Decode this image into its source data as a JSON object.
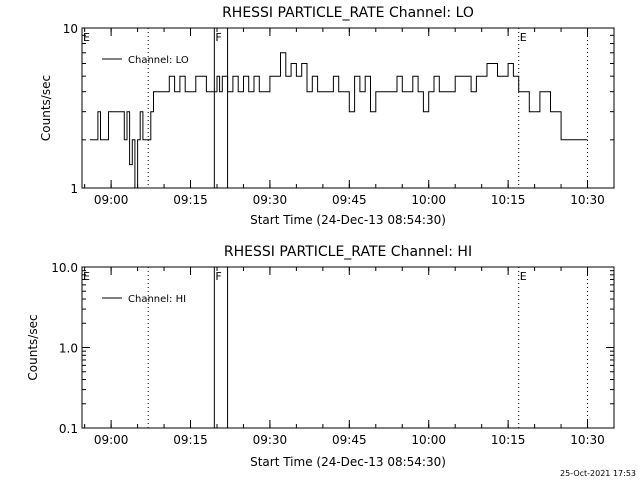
{
  "footer": {
    "timestamp": "25-Oct-2021 17:53"
  },
  "chart_data": [
    {
      "type": "line",
      "title": "RHESSI PARTICLE_RATE Channel: LO",
      "xlabel": "Start Time (24-Dec-13 08:54:30)",
      "ylabel": "Counts/sec",
      "xscale": "time",
      "yscale": "log",
      "xlim": [
        "08:54:30",
        "10:35:00"
      ],
      "ylim": [
        1,
        10
      ],
      "xtick_labels": [
        "09:00",
        "09:15",
        "09:30",
        "09:45",
        "10:00",
        "10:15",
        "10:30"
      ],
      "ytick_labels": [
        "1",
        "10"
      ],
      "legend": {
        "position": "top-left",
        "entries": [
          "Channel: LO"
        ]
      },
      "flags": [
        {
          "label": "E",
          "time": "08:54:30",
          "style": "dotted"
        },
        {
          "label": "",
          "time": "09:07:00",
          "style": "dotted"
        },
        {
          "label": "F",
          "time": "09:19:30",
          "style": "solid"
        },
        {
          "label": "",
          "time": "09:22:00",
          "style": "solid"
        },
        {
          "label": "E",
          "time": "10:17:00",
          "style": "dotted"
        },
        {
          "label": "",
          "time": "10:30:00",
          "style": "dotted"
        }
      ],
      "series": [
        {
          "name": "Channel: LO",
          "x": [
            "08:56:00",
            "08:57:00",
            "08:57:30",
            "08:58:00",
            "08:58:30",
            "08:59:30",
            "09:00:00",
            "09:01:00",
            "09:02:00",
            "09:02:30",
            "09:03:00",
            "09:03:30",
            "09:04:00",
            "09:04:30",
            "09:05:00",
            "09:05:30",
            "09:06:00",
            "09:07:00",
            "09:07:30",
            "09:08:00",
            "09:09:00",
            "09:10:00",
            "09:11:00",
            "09:12:00",
            "09:13:00",
            "09:14:00",
            "09:15:00",
            "09:16:00",
            "09:17:00",
            "09:18:00",
            "09:19:00",
            "09:19:30",
            "09:20:00",
            "09:20:30",
            "09:21:00",
            "09:22:00",
            "09:23:00",
            "09:24:00",
            "09:25:00",
            "09:26:00",
            "09:27:00",
            "09:28:00",
            "09:29:00",
            "09:30:00",
            "09:31:00",
            "09:32:00",
            "09:33:00",
            "09:34:00",
            "09:35:00",
            "09:36:00",
            "09:37:00",
            "09:38:00",
            "09:39:00",
            "09:40:00",
            "09:41:00",
            "09:42:00",
            "09:43:00",
            "09:44:00",
            "09:45:00",
            "09:46:00",
            "09:47:00",
            "09:48:00",
            "09:49:00",
            "09:50:00",
            "09:51:00",
            "09:52:00",
            "09:53:00",
            "09:54:00",
            "09:55:00",
            "09:56:00",
            "09:57:00",
            "09:58:00",
            "09:59:00",
            "10:00:00",
            "10:01:00",
            "10:02:00",
            "10:03:00",
            "10:04:00",
            "10:05:00",
            "10:06:00",
            "10:07:00",
            "10:08:00",
            "10:09:00",
            "10:10:00",
            "10:11:00",
            "10:12:00",
            "10:13:00",
            "10:14:00",
            "10:15:00",
            "10:16:00",
            "10:17:00",
            "10:18:00",
            "10:19:00",
            "10:20:00",
            "10:21:00",
            "10:22:00",
            "10:23:00",
            "10:24:00",
            "10:25:00",
            "10:26:00",
            "10:27:00",
            "10:28:00",
            "10:29:00",
            "10:30:00"
          ],
          "y": [
            2,
            2,
            3,
            2,
            2,
            3,
            3,
            3,
            3,
            2,
            3,
            1.4,
            2,
            1,
            2,
            3,
            2,
            2,
            3,
            4,
            4,
            4,
            5,
            4,
            5,
            4,
            4,
            5,
            5,
            4,
            4,
            4,
            5,
            4,
            5,
            4,
            5,
            4,
            5,
            4,
            5,
            4,
            4,
            5,
            5,
            7,
            5,
            6,
            5,
            6,
            4,
            5,
            4,
            4,
            4,
            5,
            4,
            4,
            3,
            5,
            4,
            5,
            3,
            4,
            4,
            4,
            4,
            5,
            4,
            4,
            5,
            4,
            3,
            4,
            5,
            4,
            4,
            4,
            5,
            5,
            5,
            4,
            5,
            5,
            6,
            6,
            5,
            5,
            6,
            5,
            4,
            4,
            3,
            3,
            4,
            4,
            3,
            3,
            2,
            2,
            2,
            2,
            2,
            2
          ]
        }
      ]
    },
    {
      "type": "line",
      "title": "RHESSI PARTICLE_RATE Channel: HI",
      "xlabel": "Start Time (24-Dec-13 08:54:30)",
      "ylabel": "Counts/sec",
      "xscale": "time",
      "yscale": "log",
      "xlim": [
        "08:54:30",
        "10:35:00"
      ],
      "ylim": [
        0.1,
        10
      ],
      "xtick_labels": [
        "09:00",
        "09:15",
        "09:30",
        "09:45",
        "10:00",
        "10:15",
        "10:30"
      ],
      "ytick_labels": [
        "0.1",
        "1.0",
        "10.0"
      ],
      "legend": {
        "position": "top-left",
        "entries": [
          "Channel: HI"
        ]
      },
      "flags": [
        {
          "label": "E",
          "time": "08:54:30",
          "style": "dotted"
        },
        {
          "label": "",
          "time": "09:07:00",
          "style": "dotted"
        },
        {
          "label": "F",
          "time": "09:19:30",
          "style": "solid"
        },
        {
          "label": "",
          "time": "09:22:00",
          "style": "solid"
        },
        {
          "label": "E",
          "time": "10:17:00",
          "style": "dotted"
        },
        {
          "label": "",
          "time": "10:30:00",
          "style": "dotted"
        }
      ],
      "series": [
        {
          "name": "Channel: HI",
          "x": [],
          "y": []
        }
      ]
    }
  ]
}
